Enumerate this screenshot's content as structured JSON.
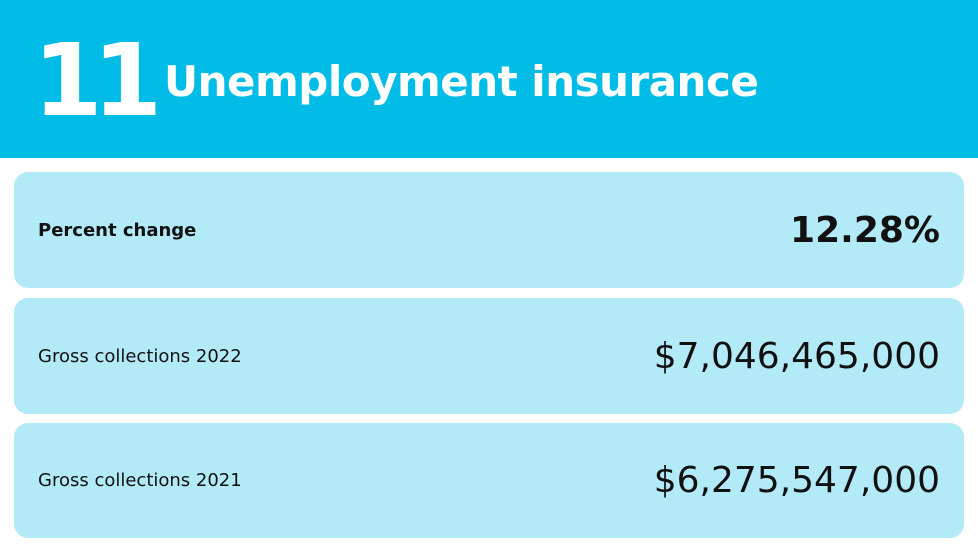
{
  "header": {
    "rank": "11",
    "title": "Unemployment insurance"
  },
  "rows": [
    {
      "label": "Percent change",
      "value": "12.28%"
    },
    {
      "label": "Gross collections 2022",
      "value": "$7,046,465,000"
    },
    {
      "label": "Gross collections 2021",
      "value": "$6,275,547,000"
    }
  ],
  "colors": {
    "header_bg": "#00bce6",
    "card_bg": "#b3eaf8",
    "text": "#111111"
  }
}
